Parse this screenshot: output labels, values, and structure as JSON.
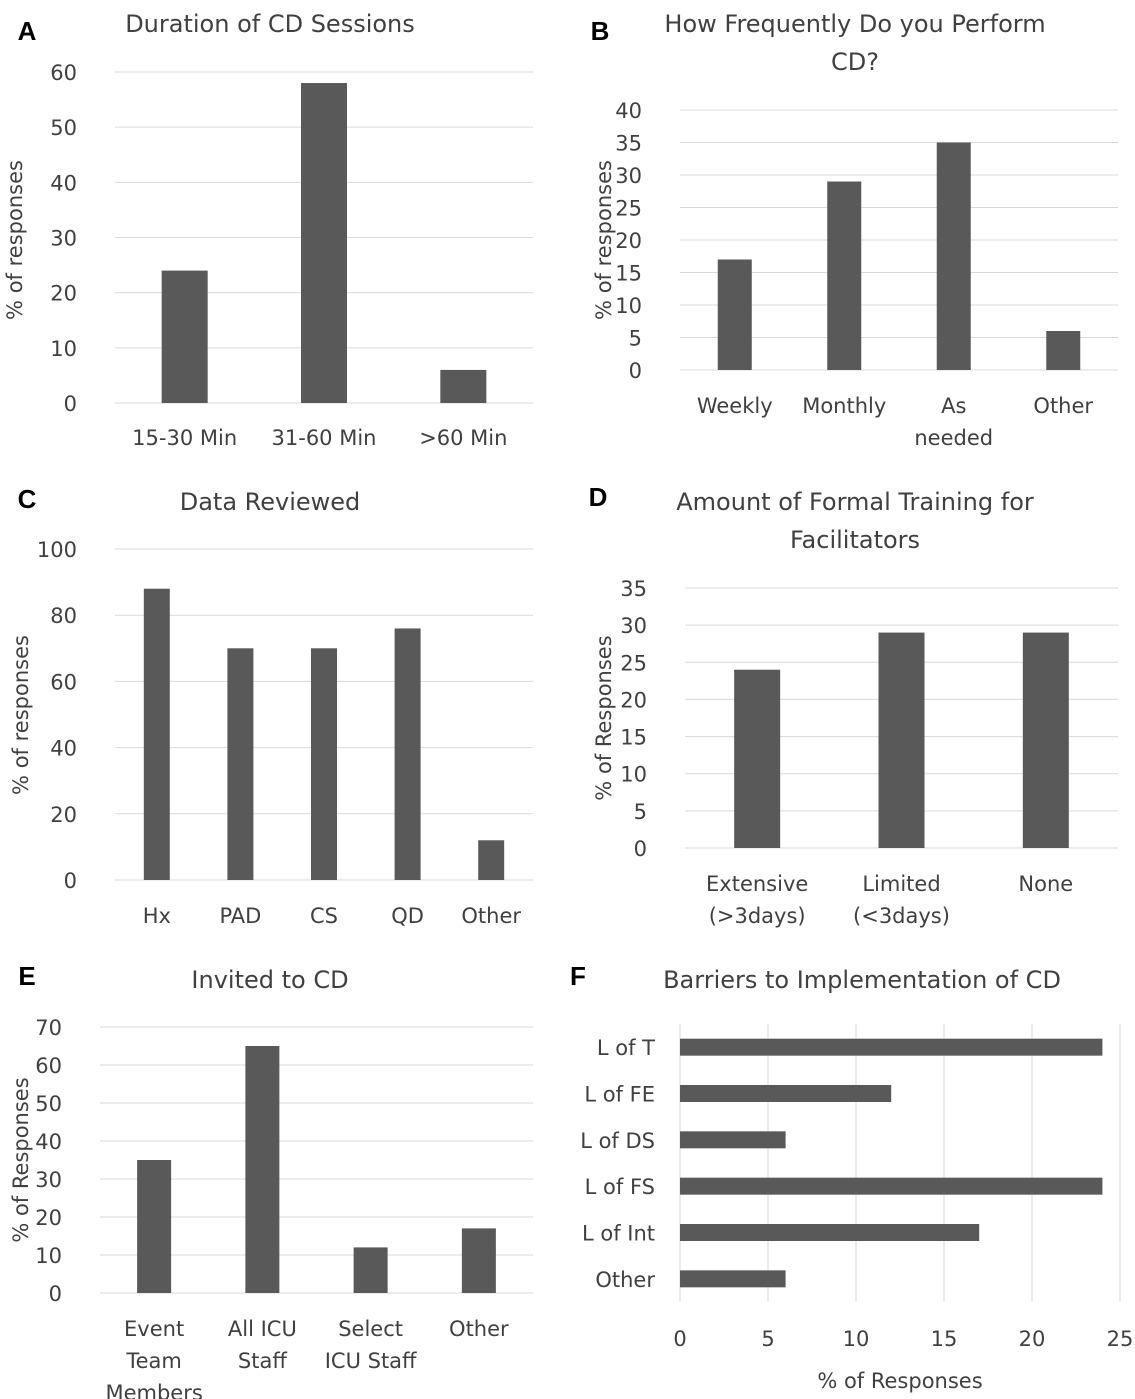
{
  "chart_data": [
    {
      "panel": "A",
      "type": "bar",
      "title": [
        "Duration of CD Sessions"
      ],
      "ylabel": "% of responses",
      "xlabel": "",
      "categories": [
        [
          "15-30 Min"
        ],
        [
          "31-60 Min"
        ],
        [
          ">60 Min"
        ]
      ],
      "values": [
        24,
        58,
        6
      ],
      "ylim": [
        0,
        60
      ],
      "yticks": [
        0,
        10,
        20,
        30,
        40,
        50,
        60
      ],
      "grid": true
    },
    {
      "panel": "B",
      "type": "bar",
      "title": [
        "How Frequently Do you Perform",
        "CD?"
      ],
      "ylabel": "% of responses",
      "xlabel": "",
      "categories": [
        [
          "Weekly"
        ],
        [
          "Monthly"
        ],
        [
          "As",
          "needed"
        ],
        [
          "Other"
        ]
      ],
      "values": [
        17,
        29,
        35,
        6
      ],
      "ylim": [
        0,
        40
      ],
      "yticks": [
        0,
        5,
        10,
        15,
        20,
        25,
        30,
        35,
        40
      ],
      "grid": true
    },
    {
      "panel": "C",
      "type": "bar",
      "title": [
        "Data Reviewed"
      ],
      "ylabel": "% of responses",
      "xlabel": "",
      "categories": [
        [
          "Hx"
        ],
        [
          "PAD"
        ],
        [
          "CS"
        ],
        [
          "QD"
        ],
        [
          "Other"
        ]
      ],
      "values": [
        88,
        70,
        70,
        76,
        12
      ],
      "ylim": [
        0,
        100
      ],
      "yticks": [
        0,
        20,
        40,
        60,
        80,
        100
      ],
      "grid": true
    },
    {
      "panel": "D",
      "type": "bar",
      "title": [
        "Amount of Formal Training for",
        "Facilitators"
      ],
      "ylabel": "% of Responses",
      "xlabel": "",
      "categories": [
        [
          "Extensive",
          "(>3days)"
        ],
        [
          "Limited",
          "(<3days)"
        ],
        [
          "None"
        ]
      ],
      "values": [
        24,
        29,
        29
      ],
      "ylim": [
        0,
        35
      ],
      "yticks": [
        0,
        5,
        10,
        15,
        20,
        25,
        30,
        35
      ],
      "grid": true
    },
    {
      "panel": "E",
      "type": "bar",
      "title": [
        "Invited to CD"
      ],
      "ylabel": "% of Responses",
      "xlabel": "",
      "categories": [
        [
          "Event",
          "Team",
          "Members"
        ],
        [
          "All ICU",
          "Staff"
        ],
        [
          "Select",
          "ICU Staff"
        ],
        [
          "Other"
        ]
      ],
      "values": [
        35,
        65,
        12,
        17
      ],
      "ylim": [
        0,
        70
      ],
      "yticks": [
        0,
        10,
        20,
        30,
        40,
        50,
        60,
        70
      ],
      "grid": true
    },
    {
      "panel": "F",
      "type": "bar",
      "orientation": "horizontal",
      "title": [
        "Barriers to Implementation of CD"
      ],
      "xlabel": "% of Responses",
      "ylabel": "",
      "categories": [
        [
          "L of T"
        ],
        [
          "L of FE"
        ],
        [
          "L of DS"
        ],
        [
          "L of FS"
        ],
        [
          "L of Int"
        ],
        [
          "Other"
        ]
      ],
      "values": [
        24,
        12,
        6,
        24,
        17,
        6
      ],
      "xlim": [
        0,
        25
      ],
      "xticks": [
        0,
        5,
        10,
        15,
        20,
        25
      ],
      "grid": true
    }
  ]
}
